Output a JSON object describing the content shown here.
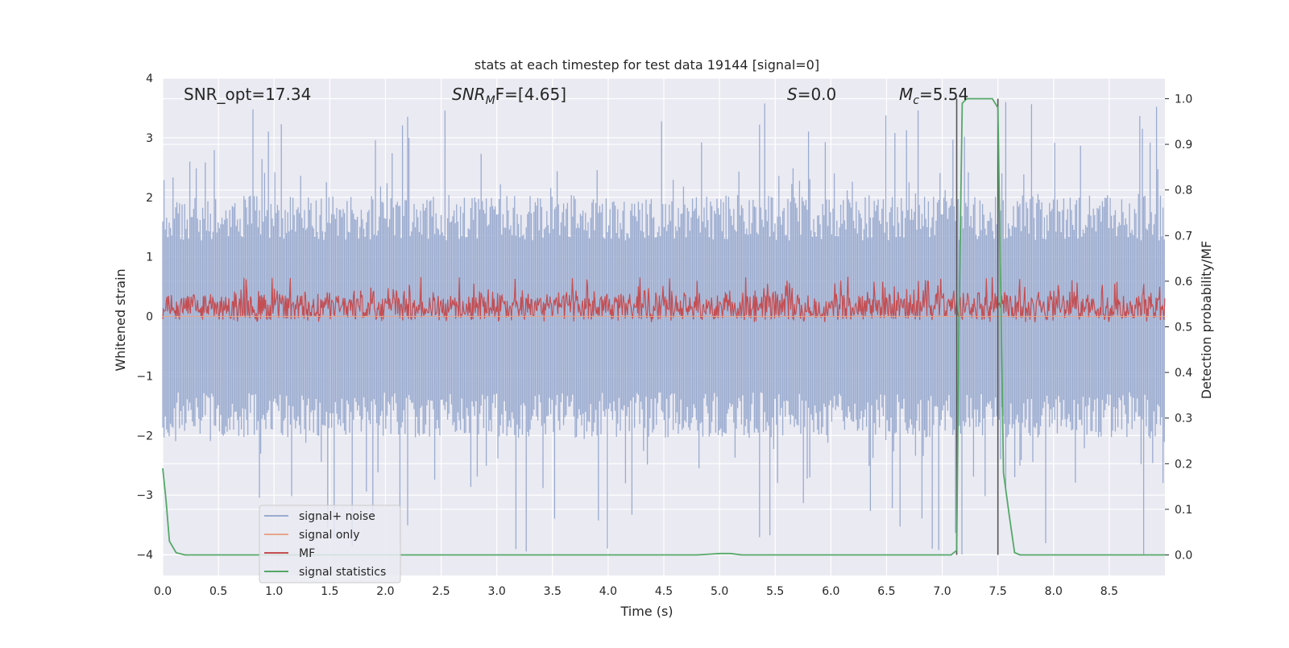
{
  "chart_data": {
    "type": "line",
    "title": "stats at each timestep for test data 19144 [signal=0]",
    "xlabel": "Time (s)",
    "ylabel_left": "Whitened strain",
    "ylabel_right": "Detection probability/MF",
    "xlim": [
      0.0,
      9.0
    ],
    "ylim_left": [
      -4.35,
      4.0
    ],
    "ylim_right": [
      -0.045,
      1.045
    ],
    "x_ticks": [
      "0.0",
      "0.5",
      "1.0",
      "1.5",
      "2.0",
      "2.5",
      "3.0",
      "3.5",
      "4.0",
      "4.5",
      "5.0",
      "5.5",
      "6.0",
      "6.5",
      "7.0",
      "7.5",
      "8.0",
      "8.5"
    ],
    "y_left_ticks": [
      "−4",
      "−3",
      "−2",
      "−1",
      "0",
      "1",
      "2",
      "3",
      "4"
    ],
    "y_right_ticks": [
      "0.0",
      "0.1",
      "0.2",
      "0.3",
      "0.4",
      "0.5",
      "0.6",
      "0.7",
      "0.8",
      "0.9",
      "1.0"
    ],
    "grid": true,
    "legend_position": "lower-left",
    "annotations": {
      "snr_opt": "SNR_opt=17.34",
      "snr_mf_sym": "SNR",
      "snr_mf_sub": "M",
      "snr_mf_rest": "F=[4.65]",
      "s_sym": "S",
      "s_rest": "=0.0",
      "mc_sym": "M",
      "mc_sub": "c",
      "mc_rest": "=5.54"
    },
    "vertical_markers_x": [
      7.13,
      7.5
    ],
    "series": [
      {
        "name": "signal+ noise",
        "color": "#9aabcf",
        "amplitude_band": [
          -1.7,
          1.7
        ],
        "peak_range": [
          -4.0,
          3.65
        ]
      },
      {
        "name": "signal only",
        "color": "#e8a58a",
        "values_approx": 0.0
      },
      {
        "name": "MF",
        "color": "#c44e52",
        "band": [
          0.0,
          0.7
        ]
      },
      {
        "name": "signal statistics",
        "color": "#55a868",
        "x": [
          0.0,
          0.03,
          0.06,
          0.12,
          0.2,
          0.5,
          1.0,
          2.0,
          3.0,
          4.0,
          4.8,
          5.0,
          5.1,
          5.2,
          5.6,
          6.0,
          6.5,
          7.0,
          7.08,
          7.13,
          7.15,
          7.18,
          7.22,
          7.3,
          7.4,
          7.45,
          7.5,
          7.55,
          7.6,
          7.65,
          7.7,
          8.0,
          8.5,
          9.0
        ],
        "y": [
          0.19,
          0.12,
          0.03,
          0.005,
          0.0,
          0.0,
          0.0,
          0.0,
          0.0,
          0.0,
          0.0,
          0.003,
          0.003,
          0.0,
          0.0,
          0.0,
          0.0,
          0.0,
          0.0,
          0.01,
          0.5,
          0.99,
          1.0,
          1.0,
          1.0,
          1.0,
          0.98,
          0.18,
          0.09,
          0.005,
          0.0,
          0.0,
          0.0,
          0.0
        ]
      }
    ]
  }
}
